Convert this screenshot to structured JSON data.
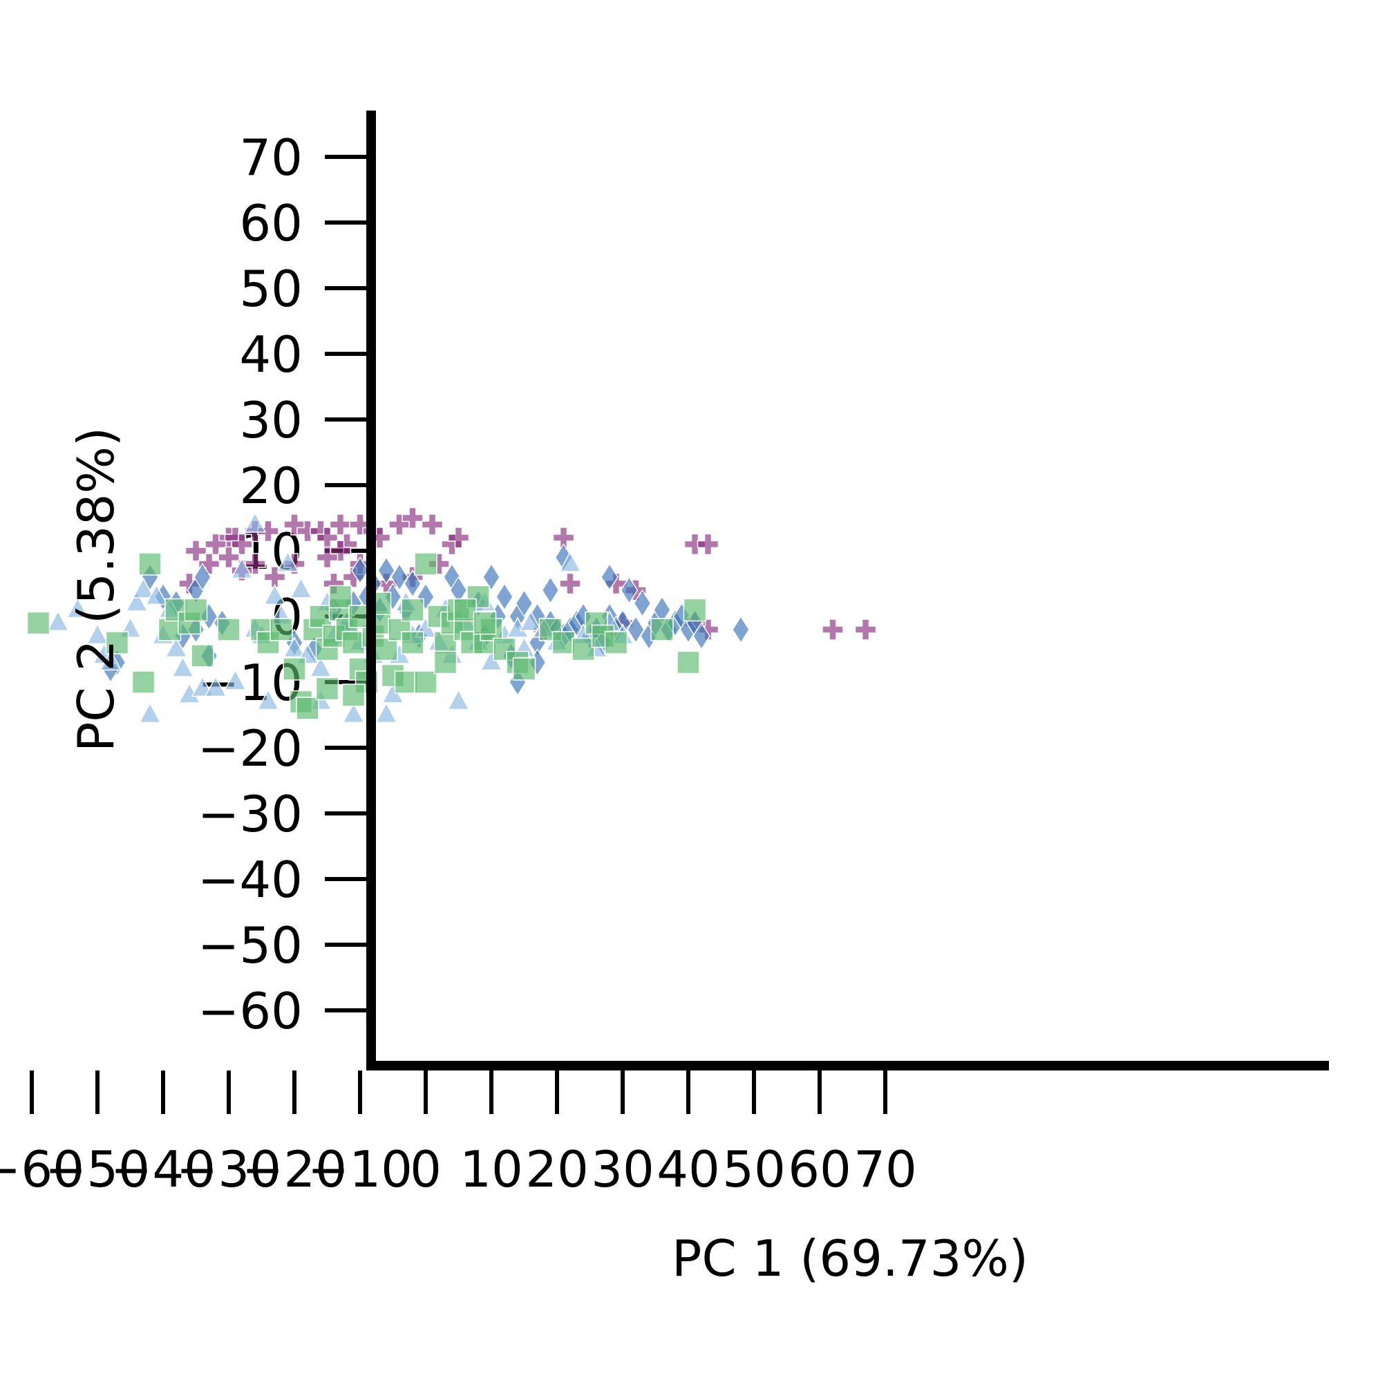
{
  "chart_data": {
    "type": "scatter",
    "title": "",
    "xlabel": "PC 1 (69.73%)",
    "ylabel": "PC 2 (5.38%)",
    "xlim": [
      -69,
      77
    ],
    "ylim": [
      -69,
      77
    ],
    "xticks": [
      -60,
      -50,
      -40,
      -30,
      -20,
      -10,
      0,
      10,
      20,
      30,
      40,
      50,
      60,
      70
    ],
    "yticks": [
      -60,
      -50,
      -40,
      -30,
      -20,
      -10,
      0,
      10,
      20,
      30,
      40,
      50,
      60,
      70
    ],
    "xtick_labels": [
      "−60",
      "−50",
      "−40",
      "−30",
      "−20",
      "−10",
      "0",
      "10",
      "20",
      "30",
      "40",
      "50",
      "60",
      "70"
    ],
    "ytick_labels": [
      "−60",
      "−50",
      "−40",
      "−30",
      "−20",
      "−10",
      "0",
      "10",
      "20",
      "30",
      "40",
      "50",
      "60",
      "70"
    ],
    "grid": false,
    "legend": "none",
    "series": [
      {
        "marker": "plus",
        "color": "#88307f",
        "points": [
          [
            -30,
            12
          ],
          [
            -29,
            12
          ],
          [
            -28,
            11
          ],
          [
            -26,
            13
          ],
          [
            -24,
            13
          ],
          [
            -20,
            14
          ],
          [
            -18,
            13
          ],
          [
            -16,
            13
          ],
          [
            -15,
            12
          ],
          [
            -13,
            14
          ],
          [
            -12,
            11
          ],
          [
            -10,
            14
          ],
          [
            -13,
            10
          ],
          [
            -15,
            9
          ],
          [
            -8,
            13
          ],
          [
            -7,
            12
          ],
          [
            -4,
            14
          ],
          [
            -2,
            15
          ],
          [
            1,
            14
          ],
          [
            4,
            11
          ],
          [
            2,
            8
          ],
          [
            -32,
            11
          ],
          [
            -35,
            10
          ],
          [
            -33,
            8
          ],
          [
            -30,
            9
          ],
          [
            -26,
            8
          ],
          [
            -23,
            6
          ],
          [
            -14,
            5
          ],
          [
            -11,
            6
          ],
          [
            -6,
            5
          ],
          [
            -2,
            6
          ],
          [
            21,
            12
          ],
          [
            22,
            5
          ],
          [
            29,
            5
          ],
          [
            32,
            4
          ],
          [
            41,
            11
          ],
          [
            43,
            11
          ],
          [
            43,
            -2
          ],
          [
            62,
            -2
          ],
          [
            67,
            -2
          ],
          [
            -36,
            5
          ],
          [
            -28,
            7
          ],
          [
            -20,
            8
          ],
          [
            -10,
            8
          ],
          [
            5,
            12
          ],
          [
            18,
            -2
          ],
          [
            30,
            -1
          ],
          [
            41,
            -1
          ]
        ]
      },
      {
        "marker": "diamond",
        "color": "#3b73b9",
        "points": [
          [
            -42,
            6
          ],
          [
            -40,
            3
          ],
          [
            -38,
            2
          ],
          [
            -37,
            -3
          ],
          [
            -35,
            -2
          ],
          [
            -33,
            0
          ],
          [
            -31,
            -1
          ],
          [
            -33,
            -6
          ],
          [
            -35,
            4
          ],
          [
            -34,
            6
          ],
          [
            -10,
            7
          ],
          [
            -8,
            5
          ],
          [
            -6,
            7
          ],
          [
            -4,
            6
          ],
          [
            -2,
            5
          ],
          [
            0,
            3
          ],
          [
            4,
            6
          ],
          [
            5,
            4
          ],
          [
            10,
            6
          ],
          [
            12,
            3
          ],
          [
            14,
            0
          ],
          [
            15,
            2
          ],
          [
            17,
            0
          ],
          [
            17,
            -4
          ],
          [
            17,
            -7
          ],
          [
            19,
            4
          ],
          [
            19,
            -1
          ],
          [
            20,
            -2
          ],
          [
            21,
            -3
          ],
          [
            22,
            -2
          ],
          [
            23,
            -1
          ],
          [
            24,
            0
          ],
          [
            25,
            -3
          ],
          [
            26,
            -2
          ],
          [
            27,
            -4
          ],
          [
            28,
            0
          ],
          [
            28,
            6
          ],
          [
            30,
            -1
          ],
          [
            31,
            4
          ],
          [
            32,
            -2
          ],
          [
            34,
            -3
          ],
          [
            35,
            -1
          ],
          [
            36,
            1
          ],
          [
            37,
            -2
          ],
          [
            38,
            -1
          ],
          [
            39,
            0
          ],
          [
            40,
            -2
          ],
          [
            41,
            -1
          ],
          [
            42,
            -3
          ],
          [
            48,
            -2
          ],
          [
            -12,
            -1
          ],
          [
            -14,
            1
          ],
          [
            -11,
            2
          ],
          [
            -9,
            3
          ],
          [
            -7,
            1
          ],
          [
            -5,
            3
          ],
          [
            -3,
            1
          ],
          [
            -47,
            -7
          ],
          [
            -48,
            -8
          ],
          [
            -20,
            -4
          ],
          [
            -17,
            -5
          ],
          [
            9,
            -3
          ],
          [
            11,
            0
          ],
          [
            8,
            2
          ],
          [
            14,
            -10
          ],
          [
            13,
            -6
          ],
          [
            29,
            -2
          ],
          [
            33,
            2
          ],
          [
            21,
            9
          ],
          [
            -1,
            -3
          ]
        ]
      },
      {
        "marker": "triangle",
        "color": "#8ab7e2",
        "points": [
          [
            -56,
            -1
          ],
          [
            -53,
            1
          ],
          [
            -49,
            -6
          ],
          [
            -48,
            -7
          ],
          [
            -44,
            2
          ],
          [
            -43,
            4
          ],
          [
            -41,
            3
          ],
          [
            -38,
            -5
          ],
          [
            -37,
            -8
          ],
          [
            -40,
            -3
          ],
          [
            -36,
            -12
          ],
          [
            -34,
            -11
          ],
          [
            -32,
            -11
          ],
          [
            -29,
            -10
          ],
          [
            -26,
            -2
          ],
          [
            -25,
            -3
          ],
          [
            -23,
            3
          ],
          [
            -22,
            0
          ],
          [
            -20,
            -5
          ],
          [
            -18,
            -6
          ],
          [
            -16,
            -8
          ],
          [
            -14,
            -3
          ],
          [
            -12,
            -1
          ],
          [
            -10,
            -4
          ],
          [
            -8,
            -6
          ],
          [
            -26,
            14
          ],
          [
            -21,
            8
          ],
          [
            -28,
            7
          ],
          [
            -19,
            4
          ],
          [
            -24,
            -13
          ],
          [
            -16,
            -13
          ],
          [
            -11,
            -15
          ],
          [
            -6,
            -15
          ],
          [
            -42,
            -15
          ],
          [
            -4,
            -6
          ],
          [
            -2,
            -3
          ],
          [
            0,
            -2
          ],
          [
            2,
            -4
          ],
          [
            4,
            -6
          ],
          [
            6,
            -1
          ],
          [
            8,
            -4
          ],
          [
            10,
            -7
          ],
          [
            12,
            -3
          ],
          [
            14,
            -2
          ],
          [
            16,
            -1
          ],
          [
            18,
            -2
          ],
          [
            20,
            -4
          ],
          [
            22,
            8
          ],
          [
            24,
            -3
          ],
          [
            26,
            -5
          ],
          [
            28,
            -1
          ],
          [
            30,
            -3
          ],
          [
            -5,
            -12
          ],
          [
            5,
            -13
          ],
          [
            -50,
            -3
          ],
          [
            -45,
            -2
          ],
          [
            -39,
            1
          ],
          [
            -15,
            2
          ],
          [
            -3,
            2
          ],
          [
            9,
            2
          ],
          [
            15,
            -5
          ],
          [
            3,
            1
          ]
        ]
      },
      {
        "marker": "square",
        "color": "#5cba6f",
        "points": [
          [
            -59,
            -1
          ],
          [
            -47,
            -4
          ],
          [
            -43,
            -10
          ],
          [
            -42,
            8
          ],
          [
            -39,
            -2
          ],
          [
            -38,
            1
          ],
          [
            -36,
            -1
          ],
          [
            -34,
            -6
          ],
          [
            -35,
            1
          ],
          [
            -25,
            -2
          ],
          [
            -24,
            -4
          ],
          [
            -22,
            -2
          ],
          [
            -20,
            -8
          ],
          [
            -19,
            -13
          ],
          [
            -18,
            -14
          ],
          [
            -17,
            -2
          ],
          [
            -16,
            0
          ],
          [
            -15,
            -5
          ],
          [
            -14,
            -3
          ],
          [
            -13,
            1
          ],
          [
            -12,
            -2
          ],
          [
            -11,
            -4
          ],
          [
            -10,
            -8
          ],
          [
            -9,
            -10
          ],
          [
            -8,
            -3
          ],
          [
            -7,
            -1
          ],
          [
            -6,
            -5
          ],
          [
            -5,
            -9
          ],
          [
            -4,
            -2
          ],
          [
            -3,
            -10
          ],
          [
            -2,
            1
          ],
          [
            0,
            -10
          ],
          [
            0,
            8
          ],
          [
            2,
            0
          ],
          [
            3,
            -4
          ],
          [
            4,
            -1
          ],
          [
            5,
            1
          ],
          [
            6,
            -2
          ],
          [
            7,
            -4
          ],
          [
            8,
            3
          ],
          [
            9,
            -4
          ],
          [
            10,
            -2
          ],
          [
            12,
            -5
          ],
          [
            14,
            -7
          ],
          [
            15,
            -8
          ],
          [
            19,
            -2
          ],
          [
            21,
            -4
          ],
          [
            24,
            -5
          ],
          [
            26,
            -1
          ],
          [
            27,
            -3
          ],
          [
            29,
            -4
          ],
          [
            36,
            -2
          ],
          [
            40,
            -7
          ],
          [
            41,
            1
          ],
          [
            -13,
            3
          ],
          [
            -10,
            0
          ],
          [
            -7,
            2
          ],
          [
            -2,
            -4
          ],
          [
            3,
            -7
          ],
          [
            6,
            1
          ],
          [
            9,
            -1
          ],
          [
            -15,
            -11
          ],
          [
            -11,
            -12
          ],
          [
            -30,
            -2
          ]
        ]
      }
    ]
  }
}
